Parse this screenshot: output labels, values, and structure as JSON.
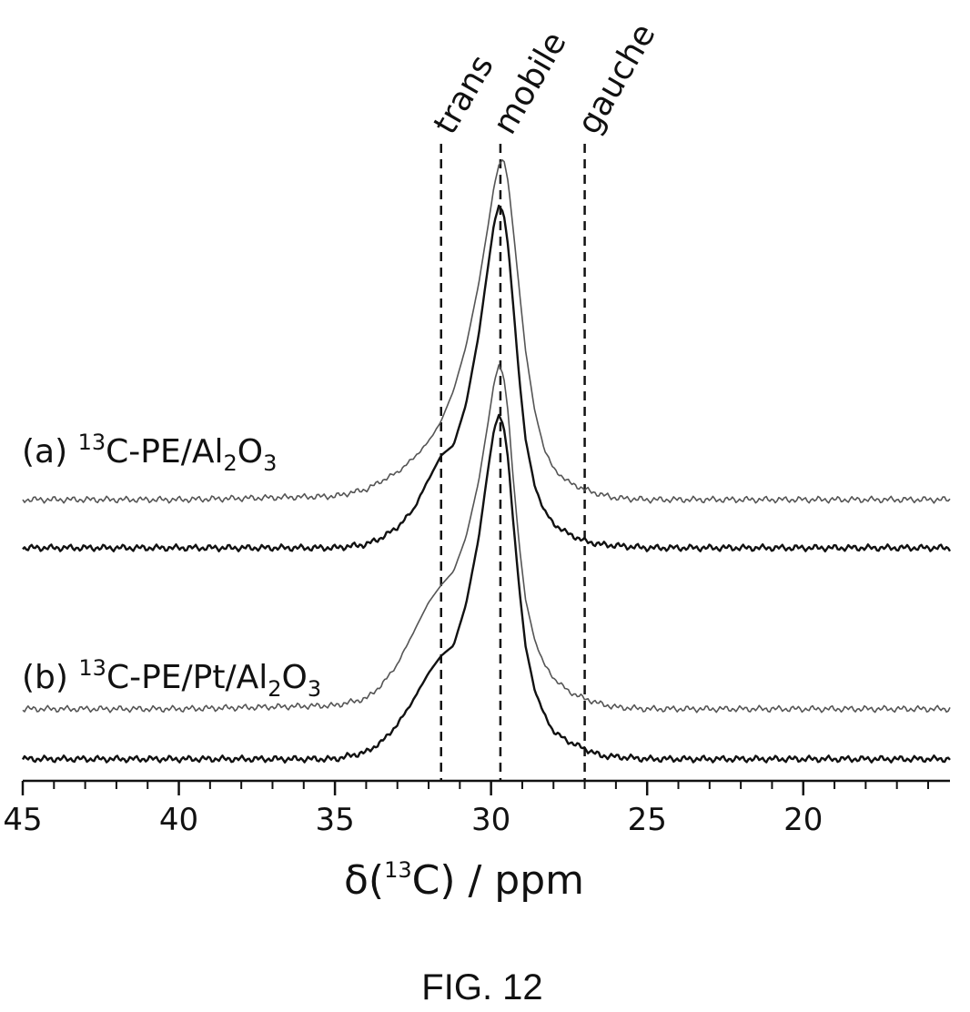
{
  "chart_data": {
    "type": "line",
    "xlabel": {
      "prefix": "δ(",
      "sup": "13",
      "suffix": "C) / ppm"
    },
    "xlim": [
      45,
      15.3
    ],
    "x_ticks": [
      45,
      40,
      35,
      30,
      25,
      20
    ],
    "reference_lines": [
      {
        "label": "trans",
        "x": 31.6
      },
      {
        "label": "mobile",
        "x": 29.7
      },
      {
        "label": "gauche",
        "x": 27.0
      }
    ],
    "sample_labels": [
      {
        "id": "a",
        "prefix": "(a) ",
        "sup": "13",
        "text": "C-PE/Al",
        "sub1": "2",
        "mid": "O",
        "sub2": "3"
      },
      {
        "id": "b",
        "prefix": "(b) ",
        "sup": "13",
        "text": "C-PE/Pt/Al",
        "sub1": "2",
        "mid": "O",
        "sub2": "3"
      }
    ],
    "series": [
      {
        "group": "a",
        "trace": 1,
        "stroke": "#555555",
        "stroke_width": 1.6,
        "x": [
          45,
          40,
          35,
          34,
          33,
          32.5,
          32,
          31.6,
          31.2,
          30.8,
          30.4,
          30.1,
          29.9,
          29.75,
          29.6,
          29.45,
          29.3,
          29.1,
          28.9,
          28.6,
          28.3,
          28.0,
          27.5,
          27.0,
          26.5,
          26,
          25,
          20,
          15.3
        ],
        "y": [
          0,
          0,
          0.01,
          0.03,
          0.08,
          0.12,
          0.17,
          0.23,
          0.32,
          0.45,
          0.63,
          0.8,
          0.92,
          0.98,
          1.0,
          0.93,
          0.8,
          0.62,
          0.44,
          0.26,
          0.15,
          0.09,
          0.05,
          0.03,
          0.015,
          0.005,
          0,
          0,
          0
        ]
      },
      {
        "group": "a",
        "trace": 2,
        "stroke": "#111111",
        "stroke_width": 2.4,
        "x": [
          45,
          40,
          35,
          34,
          33.5,
          33,
          32.5,
          32,
          31.6,
          31.2,
          30.8,
          30.4,
          30.1,
          29.9,
          29.75,
          29.6,
          29.45,
          29.3,
          29.1,
          28.9,
          28.6,
          28.3,
          28.0,
          27.5,
          27.0,
          26.5,
          25,
          20,
          15.3
        ],
        "y": [
          0,
          0,
          0,
          0.01,
          0.03,
          0.06,
          0.11,
          0.2,
          0.27,
          0.3,
          0.42,
          0.62,
          0.82,
          0.95,
          1.0,
          0.98,
          0.88,
          0.72,
          0.5,
          0.32,
          0.18,
          0.11,
          0.07,
          0.04,
          0.02,
          0.01,
          0,
          0,
          0
        ]
      },
      {
        "group": "b",
        "trace": 1,
        "stroke": "#555555",
        "stroke_width": 1.6,
        "x": [
          45,
          40,
          35,
          34,
          33.5,
          33,
          32.5,
          32,
          31.6,
          31.2,
          30.8,
          30.4,
          30.1,
          29.9,
          29.75,
          29.6,
          29.45,
          29.3,
          29.1,
          28.9,
          28.6,
          28.3,
          28.0,
          27.5,
          27.0,
          26.5,
          26,
          25,
          20,
          15.3
        ],
        "y": [
          0,
          0,
          0.01,
          0.03,
          0.07,
          0.13,
          0.22,
          0.31,
          0.36,
          0.4,
          0.5,
          0.66,
          0.83,
          0.95,
          1.0,
          0.97,
          0.86,
          0.68,
          0.48,
          0.32,
          0.2,
          0.13,
          0.09,
          0.05,
          0.03,
          0.015,
          0.005,
          0,
          0,
          0
        ]
      },
      {
        "group": "b",
        "trace": 2,
        "stroke": "#111111",
        "stroke_width": 2.4,
        "x": [
          45,
          40,
          35,
          34,
          33.5,
          33,
          32.5,
          32,
          31.6,
          31.2,
          30.8,
          30.4,
          30.1,
          29.9,
          29.75,
          29.6,
          29.45,
          29.3,
          29.1,
          28.9,
          28.6,
          28.3,
          28.0,
          27.5,
          27.0,
          26.5,
          25,
          20,
          15.3
        ],
        "y": [
          0,
          0,
          0,
          0.02,
          0.05,
          0.1,
          0.17,
          0.25,
          0.3,
          0.33,
          0.45,
          0.64,
          0.84,
          0.96,
          1.0,
          0.97,
          0.87,
          0.7,
          0.5,
          0.33,
          0.2,
          0.13,
          0.08,
          0.05,
          0.03,
          0.01,
          0,
          0,
          0
        ]
      }
    ],
    "grid": false,
    "legend": "none"
  },
  "caption": "FIG. 12"
}
